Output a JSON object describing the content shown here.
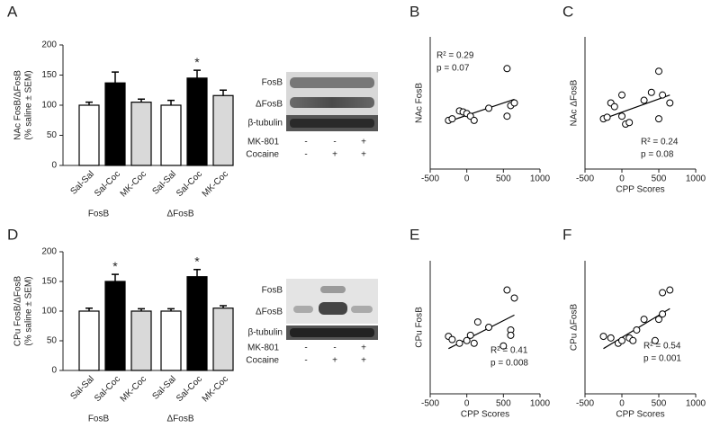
{
  "chart_data": [
    {
      "type": "bar",
      "panel": "A",
      "ylabel": [
        "NAc FosB/ΔFosB",
        "(% saline ± SEM)"
      ],
      "categories": [
        "Sal-Sal",
        "Sal-Coc",
        "MK-Coc"
      ],
      "bar_colors": [
        "#ffffff",
        "#000000",
        "#d9d9d9"
      ],
      "ylim": [
        0,
        200
      ],
      "yticks": [
        0,
        50,
        100,
        150,
        200
      ],
      "groups": [
        {
          "name": "FosB",
          "values": [
            100,
            137,
            105
          ],
          "errors": [
            5,
            18,
            5
          ],
          "significance": [
            null,
            null,
            null
          ]
        },
        {
          "name": "ΔFosB",
          "values": [
            100,
            145,
            116
          ],
          "errors": [
            8,
            13,
            9
          ],
          "significance": [
            null,
            "*",
            null
          ]
        }
      ]
    },
    {
      "type": "scatter",
      "panel": "B",
      "ylabel": "NAc FosB",
      "xlim": [
        -500,
        1000
      ],
      "xticks": [
        -500,
        0,
        500,
        1000
      ],
      "ylim": [
        0,
        250
      ],
      "x": [
        -250,
        -200,
        -100,
        -50,
        0,
        50,
        100,
        300,
        550,
        550,
        600,
        650
      ],
      "y": [
        92,
        95,
        110,
        108,
        105,
        100,
        92,
        115,
        190,
        100,
        120,
        125
      ],
      "fit": {
        "x": [
          -250,
          650
        ],
        "y": [
          90,
          132
        ]
      },
      "annotations": [
        "R² = 0.29",
        "p = 0.07"
      ]
    },
    {
      "type": "scatter",
      "panel": "C",
      "ylabel": "NAc ΔFosB",
      "xlabel": "CPP Scores",
      "xlim": [
        -500,
        1000
      ],
      "xticks": [
        -500,
        0,
        500,
        1000
      ],
      "ylim": [
        0,
        250
      ],
      "x": [
        -250,
        -200,
        -150,
        -100,
        0,
        0,
        50,
        100,
        300,
        400,
        500,
        500,
        550,
        650
      ],
      "y": [
        95,
        98,
        125,
        118,
        140,
        100,
        85,
        88,
        130,
        145,
        95,
        185,
        140,
        125
      ],
      "fit": {
        "x": [
          -250,
          650
        ],
        "y": [
          95,
          140
        ]
      },
      "annotations": [
        "R² = 0.24",
        "p = 0.08"
      ]
    },
    {
      "type": "bar",
      "panel": "D",
      "ylabel": [
        "CPu FosB/ΔFosB",
        "(% saline ± SEM)"
      ],
      "categories": [
        "Sal-Sal",
        "Sal-Coc",
        "MK-Coc"
      ],
      "bar_colors": [
        "#ffffff",
        "#000000",
        "#d9d9d9"
      ],
      "ylim": [
        0,
        200
      ],
      "yticks": [
        0,
        50,
        100,
        150,
        200
      ],
      "groups": [
        {
          "name": "FosB",
          "values": [
            100,
            150,
            100
          ],
          "errors": [
            5,
            12,
            4
          ],
          "significance": [
            null,
            "*",
            null
          ]
        },
        {
          "name": "ΔFosB",
          "values": [
            100,
            158,
            105
          ],
          "errors": [
            4,
            12,
            4
          ],
          "significance": [
            null,
            "*",
            null
          ]
        }
      ]
    },
    {
      "type": "scatter",
      "panel": "E",
      "ylabel": "CPu FosB",
      "xlabel": "CPP Scores",
      "xlim": [
        -500,
        1000
      ],
      "xticks": [
        -500,
        0,
        500,
        1000
      ],
      "ylim": [
        0,
        250
      ],
      "x": [
        -250,
        -200,
        -100,
        0,
        50,
        100,
        150,
        300,
        500,
        550,
        600,
        600,
        650
      ],
      "y": [
        108,
        102,
        95,
        100,
        110,
        95,
        135,
        125,
        90,
        195,
        120,
        110,
        180
      ],
      "fit": {
        "x": [
          -250,
          650
        ],
        "y": [
          85,
          148
        ]
      },
      "annotations": [
        "R² = 0.41",
        "p = 0.008"
      ]
    },
    {
      "type": "scatter",
      "panel": "F",
      "ylabel": "CPu ΔFosB",
      "xlabel": "CPP Scores",
      "xlim": [
        -500,
        1000
      ],
      "xticks": [
        -500,
        0,
        500,
        1000
      ],
      "ylim": [
        0,
        250
      ],
      "x": [
        -250,
        -150,
        -50,
        0,
        100,
        150,
        200,
        300,
        450,
        500,
        550,
        550,
        650
      ],
      "y": [
        108,
        105,
        95,
        100,
        105,
        100,
        120,
        140,
        100,
        140,
        190,
        150,
        195
      ],
      "fit": {
        "x": [
          -250,
          650
        ],
        "y": [
          85,
          160
        ]
      },
      "annotations": [
        "R² = 0.54",
        "p = 0.001"
      ]
    }
  ],
  "blots": [
    {
      "bands": [
        "FosB",
        "ΔFosB",
        "β-tubulin"
      ],
      "treatments": [
        {
          "name": "MK-801",
          "signs": [
            "-",
            "-",
            "+"
          ]
        },
        {
          "name": "Cocaine",
          "signs": [
            "-",
            "+",
            "+"
          ]
        }
      ]
    },
    {
      "bands": [
        "FosB",
        "ΔFosB",
        "β-tubulin"
      ],
      "treatments": [
        {
          "name": "MK-801",
          "signs": [
            "-",
            "-",
            "+"
          ]
        },
        {
          "name": "Cocaine",
          "signs": [
            "-",
            "+",
            "+"
          ]
        }
      ]
    }
  ]
}
